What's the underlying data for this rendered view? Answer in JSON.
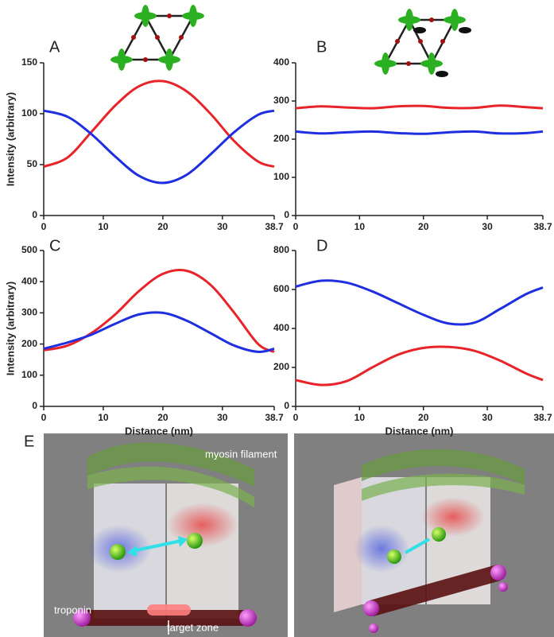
{
  "chart_data": [
    {
      "type": "line",
      "label": "A",
      "ylabel": "Intensity (arbitrary)",
      "x": [
        0,
        4,
        8,
        12,
        16,
        20,
        24,
        28,
        32,
        36,
        38.7
      ],
      "series": [
        {
          "color": "#e8232a",
          "values": [
            48,
            57,
            82,
            108,
            127,
            132,
            122,
            100,
            73,
            53,
            48
          ]
        },
        {
          "color": "#1f2fe0",
          "values": [
            103,
            97,
            80,
            58,
            39,
            32,
            40,
            60,
            82,
            99,
            103
          ]
        }
      ],
      "xlim": [
        0,
        38.7
      ],
      "xticks": [
        0,
        10,
        20,
        30,
        38.7
      ],
      "ylim": [
        0,
        150
      ],
      "yticks": [
        0,
        50,
        100,
        150
      ]
    },
    {
      "type": "line",
      "label": "B",
      "x": [
        0,
        4,
        8,
        12,
        16,
        20,
        24,
        28,
        32,
        36,
        38.7
      ],
      "series": [
        {
          "color": "#e8232a",
          "values": [
            281,
            286,
            283,
            281,
            286,
            287,
            282,
            282,
            288,
            284,
            281
          ]
        },
        {
          "color": "#1f2fe0",
          "values": [
            220,
            215,
            218,
            220,
            216,
            214,
            218,
            220,
            215,
            216,
            220
          ]
        }
      ],
      "xlim": [
        0,
        38.7
      ],
      "xticks": [
        0,
        10,
        20,
        30,
        38.7
      ],
      "ylim": [
        0,
        400
      ],
      "yticks": [
        0,
        100,
        200,
        300,
        400
      ]
    },
    {
      "type": "line",
      "label": "C",
      "ylabel": "Intensity (arbitrary)",
      "xlabel": "Distance (nm)",
      "x": [
        0,
        4,
        8,
        12,
        16,
        20,
        24,
        28,
        32,
        36,
        38.7
      ],
      "series": [
        {
          "color": "#e8232a",
          "values": [
            180,
            195,
            235,
            295,
            370,
            425,
            435,
            390,
            300,
            200,
            175
          ]
        },
        {
          "color": "#1f2fe0",
          "values": [
            185,
            205,
            230,
            265,
            295,
            300,
            275,
            235,
            195,
            175,
            185
          ]
        }
      ],
      "xlim": [
        0,
        38.7
      ],
      "xticks": [
        0,
        10,
        20,
        30,
        38.7
      ],
      "ylim": [
        0,
        500
      ],
      "yticks": [
        0,
        100,
        200,
        300,
        400,
        500
      ]
    },
    {
      "type": "line",
      "label": "D",
      "xlabel": "Distance (nm)",
      "x": [
        0,
        4,
        8,
        12,
        16,
        20,
        24,
        28,
        32,
        36,
        38.7
      ],
      "series": [
        {
          "color": "#1f2fe0",
          "values": [
            615,
            645,
            635,
            590,
            530,
            470,
            425,
            430,
            500,
            575,
            610
          ]
        },
        {
          "color": "#e8232a",
          "values": [
            135,
            110,
            130,
            200,
            265,
            300,
            305,
            285,
            235,
            170,
            135
          ]
        }
      ],
      "xlim": [
        0,
        38.7
      ],
      "xticks": [
        0,
        10,
        20,
        30,
        38.7
      ],
      "ylim": [
        0,
        800
      ],
      "yticks": [
        0,
        200,
        400,
        600,
        800
      ]
    }
  ],
  "panel_e": {
    "label": "E",
    "annotations": [
      "myosin filament",
      "troponin",
      "target zone"
    ]
  }
}
